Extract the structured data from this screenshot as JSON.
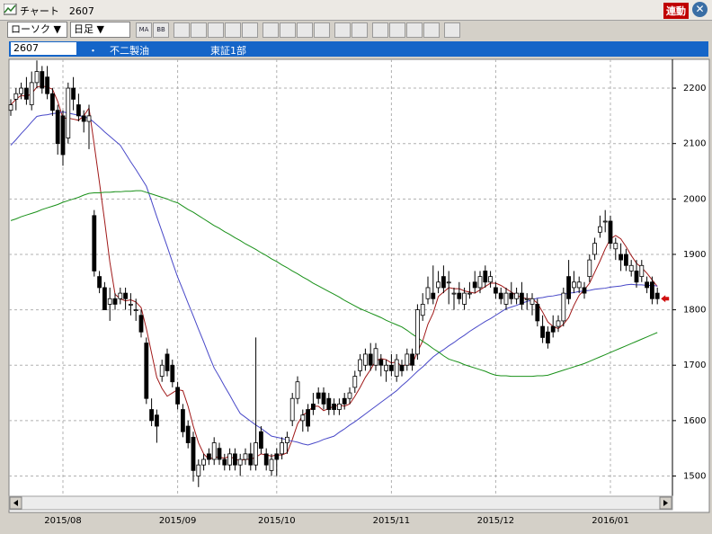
{
  "window": {
    "title": "チャート　2607",
    "link_button": "連動"
  },
  "toolbar": {
    "chart_style": "ローソク ▼",
    "period": "日足 ▼",
    "ma": "MA",
    "bb": "BB"
  },
  "info": {
    "code": "2607",
    "bullet": "・",
    "name": "不二製油",
    "market": "東証1部"
  },
  "chart_data": {
    "type": "candlestick",
    "categories": [
      null,
      null,
      null,
      null,
      null,
      null,
      null,
      null,
      null,
      null,
      "2015/08",
      null,
      null,
      null,
      null,
      null,
      null,
      null,
      null,
      null,
      null,
      null,
      null,
      null,
      null,
      null,
      null,
      null,
      null,
      null,
      null,
      null,
      "2015/09",
      null,
      null,
      null,
      null,
      null,
      null,
      null,
      null,
      null,
      null,
      null,
      null,
      null,
      null,
      null,
      null,
      null,
      null,
      "2015/10",
      null,
      null,
      null,
      null,
      null,
      null,
      null,
      null,
      null,
      null,
      null,
      null,
      null,
      null,
      null,
      null,
      null,
      null,
      null,
      null,
      null,
      "2015/11",
      null,
      null,
      null,
      null,
      null,
      null,
      null,
      null,
      null,
      null,
      null,
      null,
      null,
      null,
      null,
      null,
      null,
      null,
      null,
      "2015/12",
      null,
      null,
      null,
      null,
      null,
      null,
      null,
      null,
      null,
      null,
      null,
      null,
      null,
      null,
      null,
      null,
      null,
      null,
      null,
      null,
      null,
      "2016/01",
      null,
      null,
      null,
      null,
      null,
      null,
      null,
      null,
      null
    ],
    "open": [
      2160,
      2180,
      2190,
      2200,
      2170,
      2210,
      2230,
      2220,
      2190,
      2160,
      2150,
      2110,
      2200,
      2170,
      2150,
      2140,
      1970,
      1860,
      1840,
      1810,
      1820,
      1820,
      1830,
      1810,
      1800,
      1790,
      1740,
      1620,
      1610,
      1680,
      1720,
      1700,
      1660,
      1620,
      1590,
      1570,
      1500,
      1520,
      1540,
      1530,
      1550,
      1530,
      1520,
      1540,
      1520,
      1530,
      1540,
      1520,
      1580,
      1540,
      1510,
      1540,
      1540,
      1560,
      1600,
      1640,
      1600,
      1620,
      1630,
      1650,
      1650,
      1640,
      1630,
      1620,
      1640,
      1640,
      1660,
      1690,
      1700,
      1720,
      1700,
      1710,
      1690,
      1700,
      1680,
      1700,
      1700,
      1720,
      1720,
      1790,
      1820,
      1830,
      1840,
      1860,
      1850,
      1830,
      1830,
      1810,
      1830,
      1850,
      1840,
      1870,
      1850,
      1840,
      1830,
      1810,
      1830,
      1820,
      1830,
      1820,
      1810,
      1810,
      1770,
      1760,
      1770,
      1770,
      1780,
      1860,
      1840,
      1840,
      1840,
      1860,
      1900,
      1940,
      1960,
      1960,
      1910,
      1900,
      1900,
      1870,
      1870,
      1860,
      1850,
      1850,
      1830
    ],
    "high": [
      2180,
      2200,
      2210,
      2220,
      2230,
      2250,
      2240,
      2240,
      2200,
      2170,
      2160,
      2210,
      2220,
      2190,
      2160,
      2170,
      1980,
      1870,
      1850,
      1840,
      1830,
      1840,
      1840,
      1830,
      1820,
      1800,
      1750,
      1640,
      1620,
      1710,
      1730,
      1710,
      1670,
      1630,
      1600,
      1580,
      1530,
      1540,
      1550,
      1570,
      1560,
      1540,
      1550,
      1550,
      1540,
      1550,
      1560,
      1750,
      1590,
      1550,
      1540,
      1550,
      1570,
      1580,
      1650,
      1680,
      1620,
      1630,
      1650,
      1660,
      1660,
      1650,
      1640,
      1640,
      1650,
      1660,
      1690,
      1720,
      1730,
      1740,
      1740,
      1720,
      1710,
      1720,
      1720,
      1710,
      1730,
      1730,
      1810,
      1830,
      1860,
      1880,
      1870,
      1880,
      1870,
      1840,
      1850,
      1840,
      1850,
      1870,
      1870,
      1880,
      1870,
      1850,
      1840,
      1840,
      1850,
      1840,
      1850,
      1830,
      1830,
      1820,
      1790,
      1770,
      1790,
      1790,
      1840,
      1890,
      1870,
      1860,
      1850,
      1900,
      1930,
      1970,
      1980,
      1970,
      1930,
      1920,
      1910,
      1890,
      1890,
      1890,
      1860,
      1860,
      1840
    ],
    "low": [
      2150,
      2160,
      2180,
      2170,
      2160,
      2200,
      2190,
      2180,
      2150,
      2080,
      2060,
      2100,
      2160,
      2140,
      2120,
      2090,
      1860,
      1830,
      1800,
      1780,
      1800,
      1810,
      1800,
      1790,
      1780,
      1750,
      1630,
      1590,
      1560,
      1670,
      1680,
      1660,
      1620,
      1570,
      1550,
      1490,
      1480,
      1510,
      1520,
      1520,
      1520,
      1510,
      1510,
      1510,
      1500,
      1520,
      1510,
      1510,
      1540,
      1510,
      1500,
      1500,
      1530,
      1540,
      1590,
      1630,
      1580,
      1580,
      1610,
      1630,
      1620,
      1610,
      1610,
      1610,
      1620,
      1630,
      1650,
      1680,
      1690,
      1690,
      1690,
      1680,
      1670,
      1680,
      1670,
      1680,
      1690,
      1690,
      1710,
      1780,
      1810,
      1810,
      1830,
      1830,
      1810,
      1800,
      1810,
      1800,
      1820,
      1830,
      1830,
      1840,
      1840,
      1820,
      1810,
      1800,
      1810,
      1810,
      1800,
      1800,
      1790,
      1770,
      1740,
      1730,
      1750,
      1760,
      1770,
      1810,
      1830,
      1830,
      1820,
      1850,
      1890,
      1930,
      1940,
      1910,
      1890,
      1870,
      1870,
      1860,
      1840,
      1850,
      1830,
      1810,
      1810
    ],
    "close": [
      2170,
      2190,
      2200,
      2180,
      2210,
      2230,
      2200,
      2190,
      2160,
      2100,
      2080,
      2200,
      2180,
      2150,
      2140,
      2150,
      1870,
      1840,
      1800,
      1820,
      1810,
      1830,
      1820,
      1810,
      1800,
      1760,
      1640,
      1600,
      1590,
      1700,
      1690,
      1670,
      1630,
      1580,
      1560,
      1510,
      1520,
      1530,
      1530,
      1560,
      1530,
      1520,
      1540,
      1520,
      1530,
      1540,
      1520,
      1560,
      1550,
      1520,
      1530,
      1530,
      1560,
      1570,
      1640,
      1670,
      1610,
      1590,
      1620,
      1640,
      1630,
      1620,
      1620,
      1630,
      1630,
      1650,
      1680,
      1710,
      1720,
      1700,
      1730,
      1700,
      1700,
      1690,
      1710,
      1690,
      1720,
      1700,
      1800,
      1810,
      1840,
      1820,
      1850,
      1840,
      1850,
      1830,
      1820,
      1830,
      1830,
      1840,
      1860,
      1850,
      1860,
      1830,
      1820,
      1830,
      1820,
      1830,
      1810,
      1820,
      1820,
      1780,
      1750,
      1740,
      1760,
      1780,
      1830,
      1820,
      1850,
      1850,
      1830,
      1890,
      1920,
      1950,
      1960,
      1920,
      1920,
      1890,
      1880,
      1880,
      1850,
      1880,
      1840,
      1820,
      1820
    ],
    "lines": [
      {
        "color": "#a01818",
        "values": [
          2170,
          2180,
          2187,
          2185,
          2190,
          2202,
          2204,
          2202,
          2198,
          2176,
          2146,
          2146,
          2144,
          2142,
          2150,
          2164,
          2098,
          2030,
          1960,
          1886,
          1828,
          1820,
          1816,
          1818,
          1814,
          1804,
          1766,
          1722,
          1678,
          1658,
          1644,
          1650,
          1656,
          1654,
          1626,
          1590,
          1560,
          1540,
          1530,
          1534,
          1534,
          1532,
          1536,
          1530,
          1528,
          1530,
          1530,
          1534,
          1540,
          1538,
          1536,
          1538,
          1538,
          1542,
          1566,
          1594,
          1610,
          1616,
          1626,
          1626,
          1618,
          1622,
          1626,
          1628,
          1626,
          1630,
          1644,
          1660,
          1678,
          1692,
          1708,
          1712,
          1710,
          1704,
          1706,
          1698,
          1702,
          1702,
          1724,
          1744,
          1774,
          1794,
          1824,
          1832,
          1840,
          1838,
          1838,
          1834,
          1832,
          1830,
          1836,
          1842,
          1848,
          1848,
          1844,
          1838,
          1832,
          1826,
          1822,
          1820,
          1820,
          1812,
          1796,
          1778,
          1770,
          1766,
          1774,
          1786,
          1808,
          1826,
          1836,
          1848,
          1868,
          1888,
          1910,
          1928,
          1934,
          1928,
          1914,
          1898,
          1884,
          1876,
          1866,
          1854,
          1842
        ]
      },
      {
        "color": "#4848c8",
        "values": [
          2097,
          2107,
          2118,
          2128,
          2139,
          2149,
          2151,
          2152,
          2154,
          2155,
          2157,
          2155,
          2153,
          2151,
          2148,
          2146,
          2138,
          2130,
          2121,
          2113,
          2105,
          2097,
          2082,
          2067,
          2053,
          2038,
          2023,
          1996,
          1968,
          1941,
          1914,
          1886,
          1859,
          1836,
          1812,
          1789,
          1765,
          1742,
          1718,
          1695,
          1679,
          1662,
          1646,
          1629,
          1613,
          1606,
          1599,
          1592,
          1586,
          1579,
          1572,
          1570,
          1568,
          1565,
          1563,
          1561,
          1558,
          1556,
          1559,
          1562,
          1566,
          1569,
          1572,
          1579,
          1585,
          1592,
          1598,
          1605,
          1612,
          1619,
          1626,
          1633,
          1640,
          1647,
          1654,
          1663,
          1671,
          1680,
          1689,
          1697,
          1706,
          1715,
          1722,
          1728,
          1735,
          1741,
          1748,
          1754,
          1761,
          1767,
          1773,
          1779,
          1784,
          1790,
          1796,
          1802,
          1805,
          1808,
          1812,
          1815,
          1818,
          1821,
          1822,
          1824,
          1825,
          1827,
          1828,
          1830,
          1831,
          1833,
          1834,
          1835,
          1837,
          1838,
          1839,
          1841,
          1842,
          1843,
          1845,
          1846,
          1845,
          1845,
          1844,
          1844,
          1843
        ]
      },
      {
        "color": "#189018",
        "values": [
          1961,
          1964,
          1968,
          1971,
          1974,
          1977,
          1981,
          1984,
          1987,
          1990,
          1994,
          1997,
          2000,
          2003,
          2007,
          2010,
          2011,
          2011,
          2012,
          2012,
          2013,
          2013,
          2014,
          2014,
          2015,
          2015,
          2012,
          2009,
          2006,
          2003,
          2000,
          1996,
          1993,
          1987,
          1981,
          1976,
          1970,
          1964,
          1958,
          1952,
          1947,
          1941,
          1936,
          1930,
          1925,
          1919,
          1914,
          1909,
          1903,
          1898,
          1892,
          1887,
          1881,
          1876,
          1870,
          1865,
          1859,
          1854,
          1848,
          1843,
          1838,
          1833,
          1828,
          1823,
          1817,
          1812,
          1807,
          1802,
          1798,
          1794,
          1790,
          1786,
          1781,
          1777,
          1773,
          1769,
          1763,
          1756,
          1750,
          1743,
          1737,
          1730,
          1724,
          1717,
          1711,
          1708,
          1705,
          1701,
          1698,
          1695,
          1692,
          1689,
          1685,
          1682,
          1681,
          1681,
          1680,
          1680,
          1680,
          1680,
          1680,
          1681,
          1681,
          1682,
          1685,
          1688,
          1691,
          1694,
          1697,
          1700,
          1703,
          1707,
          1711,
          1715,
          1719,
          1723,
          1727,
          1731,
          1735,
          1739,
          1743,
          1747,
          1751,
          1755,
          1759
        ]
      }
    ],
    "ylim": [
      1470,
      2252
    ],
    "yticks": [
      1500,
      1600,
      1700,
      1800,
      1900,
      2000,
      2100,
      2200
    ],
    "grid": true,
    "up_color": "#ffffff",
    "down_color": "#000000"
  }
}
